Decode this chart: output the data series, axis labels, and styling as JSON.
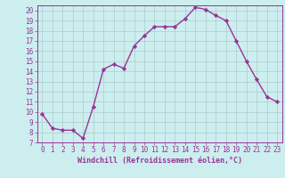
{
  "x": [
    0,
    1,
    2,
    3,
    4,
    5,
    6,
    7,
    8,
    9,
    10,
    11,
    12,
    13,
    14,
    15,
    16,
    17,
    18,
    19,
    20,
    21,
    22,
    23
  ],
  "y": [
    9.8,
    8.4,
    8.2,
    8.2,
    7.4,
    10.5,
    14.2,
    14.7,
    14.3,
    16.5,
    17.5,
    18.4,
    18.4,
    18.4,
    19.2,
    20.3,
    20.1,
    19.5,
    19.0,
    17.0,
    15.0,
    13.2,
    11.5,
    11.0
  ],
  "line_color": "#993399",
  "marker": "D",
  "marker_size": 2.2,
  "bg_color": "#cceeee",
  "grid_color": "#aacccc",
  "xlabel": "Windchill (Refroidissement éolien,°C)",
  "xlim": [
    -0.5,
    23.5
  ],
  "ylim": [
    7,
    20.5
  ],
  "yticks": [
    7,
    8,
    9,
    10,
    11,
    12,
    13,
    14,
    15,
    16,
    17,
    18,
    19,
    20
  ],
  "xticks": [
    0,
    1,
    2,
    3,
    4,
    5,
    6,
    7,
    8,
    9,
    10,
    11,
    12,
    13,
    14,
    15,
    16,
    17,
    18,
    19,
    20,
    21,
    22,
    23
  ],
  "axis_color": "#993399",
  "tick_label_color": "#993399",
  "xlabel_color": "#993399",
  "line_width": 1.0,
  "tick_fontsize": 5.5,
  "xlabel_fontsize": 6.0
}
